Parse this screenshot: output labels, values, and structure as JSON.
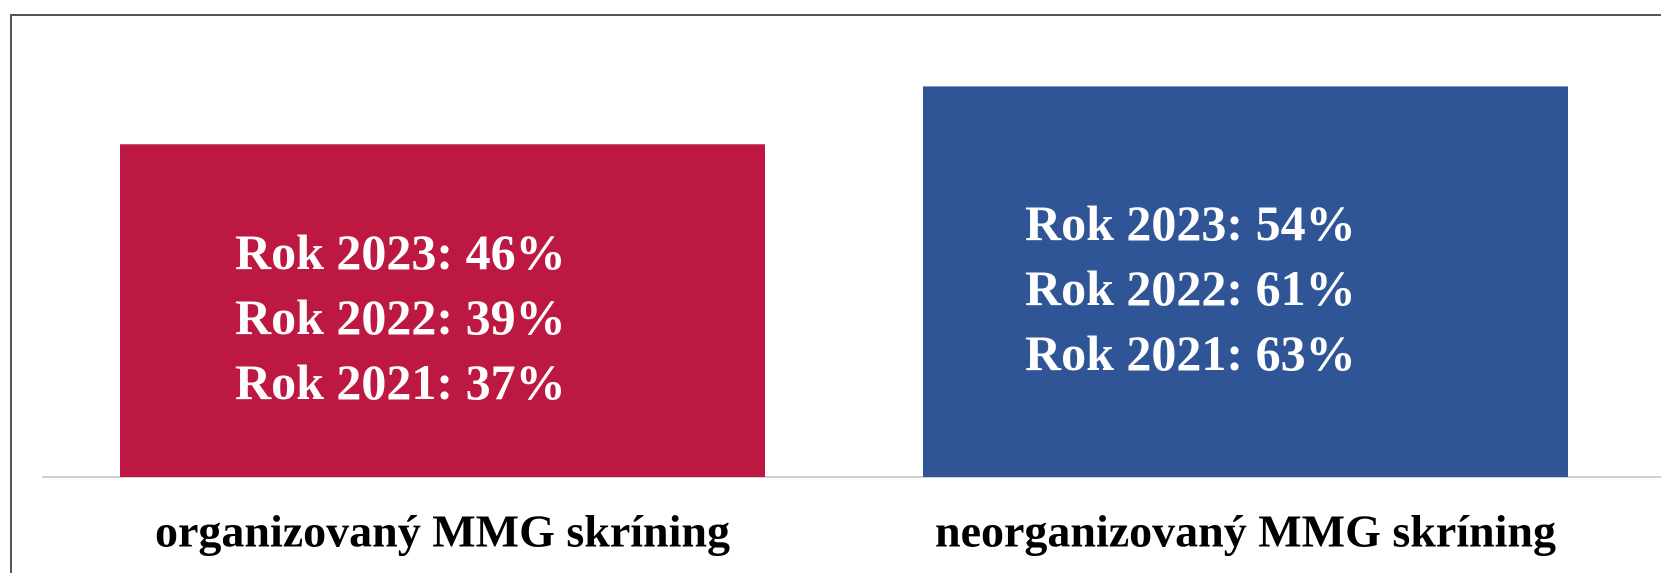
{
  "chart_data": {
    "type": "bar",
    "categories": [
      "organizovaný MMG skríning",
      "neorganizovaný MMG skríning"
    ],
    "bar_colors": [
      "#bc1842",
      "#2f5597"
    ],
    "ylim": [
      0,
      60
    ],
    "series": [
      {
        "name": "Rok 2023",
        "values": [
          46,
          54
        ],
        "value_labels": [
          "Rok 2023: 46%",
          "Rok 2023: 54%"
        ]
      },
      {
        "name": "Rok 2022",
        "values": [
          39,
          61
        ],
        "value_labels": [
          "Rok 2022: 39%",
          "Rok 2022: 61%"
        ]
      },
      {
        "name": "Rok 2021",
        "values": [
          37,
          63
        ],
        "value_labels": [
          "Rok 2021: 37%",
          "Rok 2021: 63%"
        ]
      }
    ]
  }
}
